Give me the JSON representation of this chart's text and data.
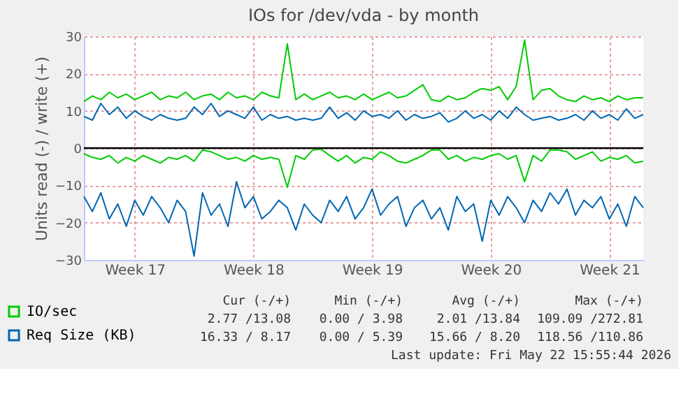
{
  "chart_data": {
    "type": "line",
    "title": "IOs for /dev/vda - by month",
    "ylabel": "Units read (-) / write (+)",
    "categories": [
      null,
      null,
      null,
      null,
      null,
      null,
      "Week 17",
      null,
      null,
      null,
      null,
      null,
      null,
      null,
      null,
      null,
      null,
      null,
      null,
      null,
      "Week 18",
      null,
      null,
      null,
      null,
      null,
      null,
      null,
      null,
      null,
      null,
      null,
      null,
      null,
      "Week 19",
      null,
      null,
      null,
      null,
      null,
      null,
      null,
      null,
      null,
      null,
      null,
      null,
      null,
      "Week 20",
      null,
      null,
      null,
      null,
      null,
      null,
      null,
      null,
      null,
      null,
      null,
      null,
      null,
      "Week 21",
      null,
      null,
      null,
      null
    ],
    "series": [
      {
        "name": "IO/sec",
        "color": "#00cc00",
        "values": [
          12.5,
          14,
          13,
          15,
          13.5,
          14.5,
          13,
          14,
          15,
          13,
          14,
          13.5,
          15,
          13,
          14,
          14.5,
          13,
          15,
          13.5,
          14,
          13,
          15,
          14,
          13.5,
          28,
          13,
          14.5,
          13,
          14,
          15,
          13.5,
          14,
          13,
          14.5,
          13,
          14,
          15,
          13.5,
          14,
          15.5,
          17,
          13,
          12.5,
          14,
          13,
          13.5,
          15,
          16,
          15.5,
          16.5,
          13,
          16.5,
          29,
          13,
          15.5,
          16,
          14,
          13,
          12.5,
          14,
          13,
          13.5,
          12.5,
          14,
          13,
          13.5,
          13.5
        ]
      },
      {
        "color": "#00cc00",
        "values": [
          -1.5,
          -2.5,
          -3,
          -2,
          -4,
          -2.5,
          -3.5,
          -2,
          -3,
          -4,
          -2.5,
          -3,
          -2,
          -3.5,
          -0.5,
          -1,
          -2,
          -3,
          -2.5,
          -3.5,
          -2,
          -3,
          -2.5,
          -3,
          -10.5,
          -2,
          -3,
          -0.5,
          -0.3,
          -2,
          -3.5,
          -2,
          -4,
          -2.5,
          -3,
          -1,
          -2,
          -3.5,
          -4,
          -3,
          -2,
          -0.5,
          -0.5,
          -3,
          -2,
          -3.5,
          -2.5,
          -3,
          -2,
          -1.5,
          -3,
          -2,
          -9,
          -2,
          -3.5,
          -0.5,
          -0.5,
          -1,
          -3,
          -2,
          -1,
          -3.5,
          -2.5,
          -3,
          -2,
          -4,
          -3.5
        ]
      },
      {
        "name": "Req Size (KB)",
        "color": "#0066b3",
        "values": [
          8.5,
          7.5,
          12,
          9,
          11,
          8,
          10,
          8.5,
          7.5,
          9,
          8,
          7.5,
          8,
          11,
          9,
          12,
          8.5,
          10,
          9,
          8,
          11,
          7.5,
          9,
          8,
          8.5,
          7.5,
          8,
          7.5,
          8,
          11,
          8,
          9.5,
          7.5,
          10,
          8.5,
          9,
          8,
          10,
          7.5,
          9,
          8,
          8.5,
          9.5,
          7,
          8,
          10,
          8,
          9,
          7.5,
          10,
          8,
          11,
          9,
          7.5,
          8,
          8.5,
          7.5,
          8,
          9,
          7.5,
          10,
          8,
          9,
          7.5,
          10.5,
          8,
          9
        ]
      },
      {
        "color": "#0066b3",
        "values": [
          -13,
          -17,
          -12,
          -19,
          -15,
          -21,
          -14,
          -18,
          -13,
          -16,
          -20,
          -14,
          -17,
          -29,
          -12,
          -18,
          -15,
          -21,
          -9,
          -16,
          -13,
          -19,
          -17,
          -14,
          -16,
          -22,
          -15,
          -18,
          -20,
          -14,
          -17,
          -13,
          -19,
          -16,
          -11,
          -18,
          -15,
          -13,
          -21,
          -16,
          -14,
          -19,
          -16,
          -22,
          -13,
          -17,
          -15,
          -25,
          -14,
          -18,
          -13,
          -16,
          -20,
          -14,
          -17,
          -12,
          -15,
          -11,
          -18,
          -14,
          -16,
          -13,
          -19,
          -15,
          -21,
          -13,
          -16
        ]
      }
    ],
    "ylim": [
      -30,
      30
    ],
    "yticks": [
      -30,
      -20,
      -10,
      0,
      10,
      20,
      30
    ],
    "ref_lines": [
      {
        "axis": "y",
        "value": 0,
        "color": "#000000"
      }
    ],
    "grid": true,
    "legend": "bottom",
    "annotations": [
      "Cur (-/+)",
      "Min (-/+)",
      "Avg (-/+)",
      "Max (-/+)",
      "2.77 /13.08",
      "0.00 / 3.98",
      "2.01 /13.84",
      "109.09 /272.81",
      "16.33 / 8.17",
      "0.00 / 5.39",
      "15.66 / 8.20",
      "118.56 /110.86",
      "Last update: Fri May 22 15:55:44 2026"
    ]
  }
}
